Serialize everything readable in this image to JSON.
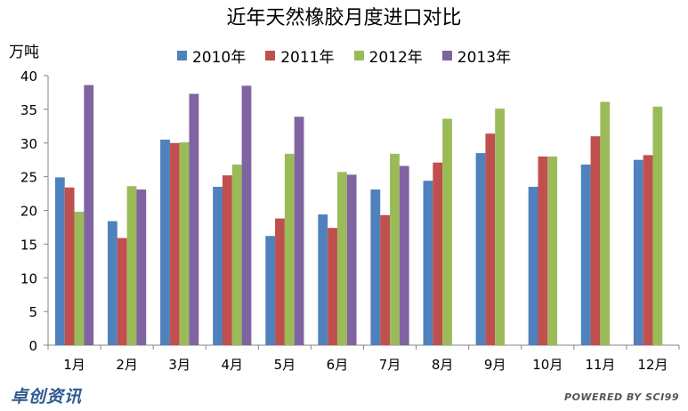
{
  "chart_data": {
    "type": "bar",
    "title": "近年天然橡胶月度进口对比",
    "ylabel": "万吨",
    "xlabel": "",
    "ylim": [
      0,
      40
    ],
    "yticks": [
      0,
      5,
      10,
      15,
      20,
      25,
      30,
      35,
      40
    ],
    "grid": false,
    "legend_position": "top",
    "categories": [
      "1月",
      "2月",
      "3月",
      "4月",
      "5月",
      "6月",
      "7月",
      "8月",
      "9月",
      "10月",
      "11月",
      "12月"
    ],
    "series": [
      {
        "name": "2010年",
        "color": "#4f81bd",
        "values": [
          24.9,
          18.4,
          30.5,
          23.5,
          16.2,
          19.4,
          23.1,
          24.4,
          28.5,
          23.5,
          26.8,
          27.5
        ]
      },
      {
        "name": "2011年",
        "color": "#c0504d",
        "values": [
          23.4,
          15.9,
          30.0,
          25.2,
          18.8,
          17.4,
          19.3,
          27.1,
          31.4,
          28.0,
          31.0,
          28.2
        ]
      },
      {
        "name": "2012年",
        "color": "#9bbb59",
        "values": [
          19.8,
          23.6,
          30.1,
          26.8,
          28.4,
          25.7,
          28.4,
          33.6,
          35.1,
          28.0,
          36.1,
          35.4
        ]
      },
      {
        "name": "2013年",
        "color": "#8064a2",
        "values": [
          38.6,
          23.1,
          37.3,
          38.5,
          33.9,
          25.3,
          26.6,
          null,
          null,
          null,
          null,
          null
        ]
      }
    ]
  },
  "branding": {
    "logo_text": "卓创资讯",
    "powered_text": "POWERED BY SCI99"
  }
}
